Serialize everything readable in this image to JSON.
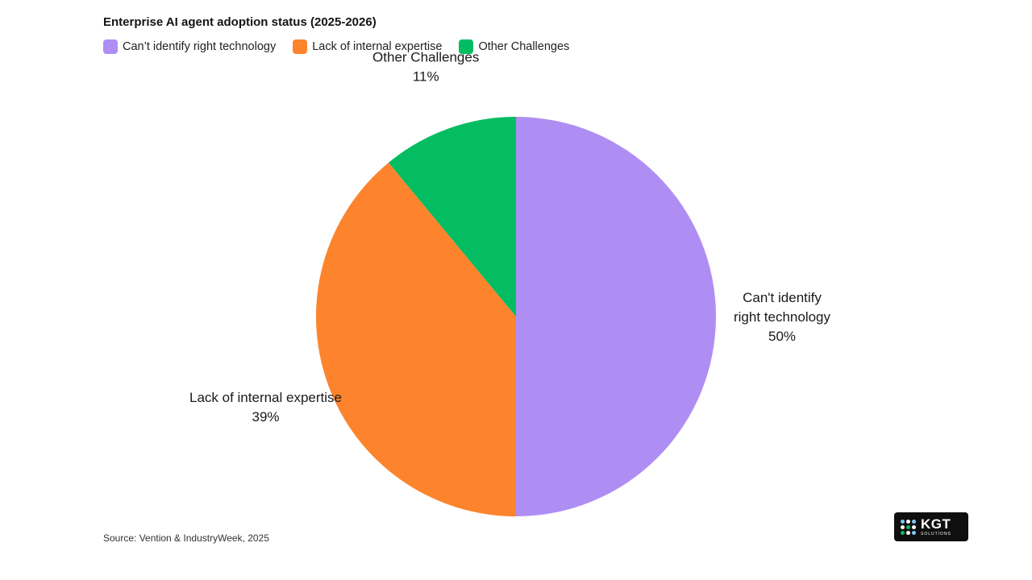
{
  "chart_data": {
    "type": "pie",
    "title": "Enterprise AI agent adoption status (2025-2026)",
    "categories": [
      "Can't identify right technology",
      "Lack of internal expertise",
      "Other Challenges"
    ],
    "values": [
      50,
      39,
      11
    ],
    "unit": "%",
    "legend_labels": [
      "Can’t identify right technology",
      "Lack of internal expertise",
      "Other Challenges"
    ],
    "data_labels": [
      {
        "lines": [
          "Can't identify",
          "right technology"
        ],
        "value_text": "50%"
      },
      {
        "lines": [
          "Lack of internal expertise"
        ],
        "value_text": "39%"
      },
      {
        "lines": [
          "Other Challenges"
        ],
        "value_text": "11%"
      }
    ],
    "colors": [
      "#af8ef4",
      "#fd842c",
      "#04bd63"
    ],
    "legend_position": "top-left"
  },
  "source": "Source: Vention & IndustryWeek, 2025",
  "logo": {
    "text": "KGT",
    "subtext": "SOLUTIONS",
    "dot_colors": [
      "#7ec8ff",
      "#ffffff",
      "#7ec8ff",
      "#ffffff",
      "#04bd63",
      "#ffffff",
      "#04bd63",
      "#ffffff",
      "#7ec8ff"
    ]
  }
}
